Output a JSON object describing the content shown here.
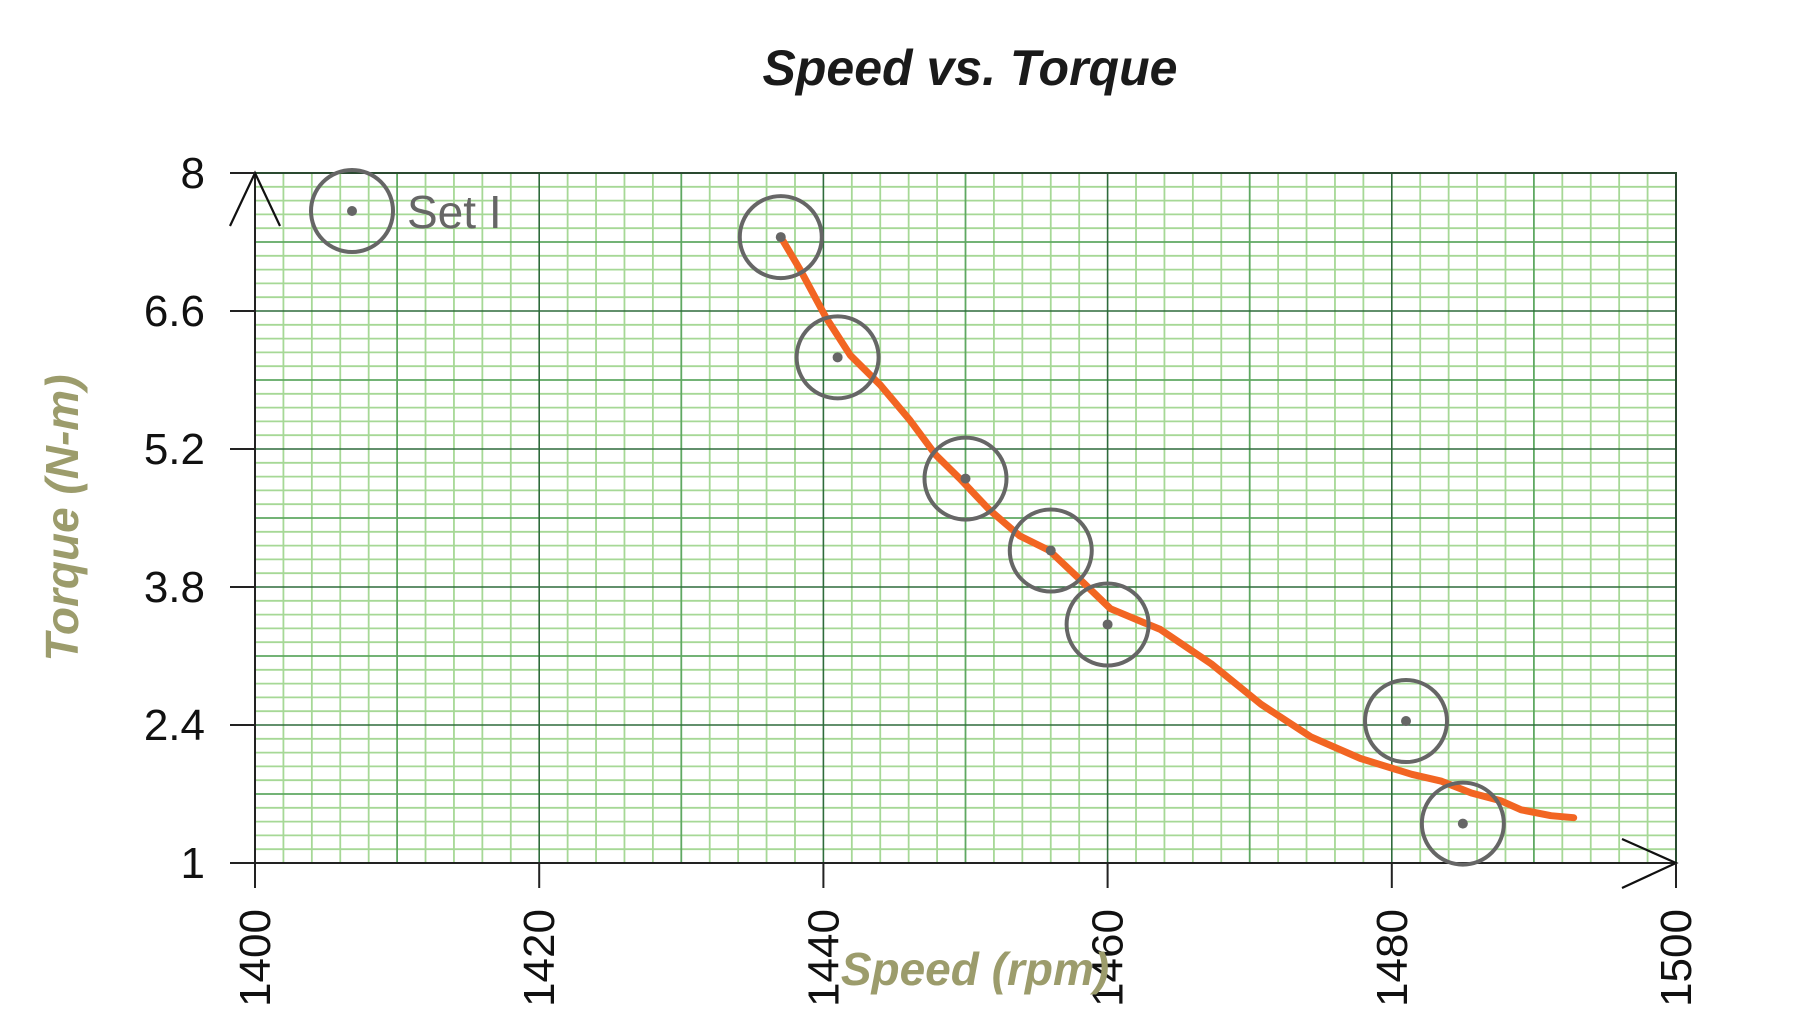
{
  "chart_data": {
    "type": "scatter",
    "title": "Speed vs. Torque",
    "xlabel": "Speed (rpm)",
    "ylabel": "Torque (N-m)",
    "xlim": [
      1400,
      1500
    ],
    "ylim": [
      1,
      8
    ],
    "x_ticks": [
      1400,
      1420,
      1440,
      1460,
      1480,
      1500
    ],
    "y_ticks": [
      1,
      2.4,
      3.8,
      5.2,
      6.6,
      8
    ],
    "x_tick_labels": [
      "1400",
      "1420",
      "1440",
      "1460",
      "1480",
      "1500"
    ],
    "y_tick_labels": [
      "1",
      "2.4",
      "3.8",
      "5.2",
      "6.6",
      "8"
    ],
    "grid": true,
    "grid_style": "graph-paper",
    "legend_position": "upper-left",
    "series": [
      {
        "name": "Set I",
        "marker": "circle-with-dot",
        "x": [
          1437,
          1441,
          1450,
          1456,
          1460,
          1481,
          1485
        ],
        "y": [
          7.35,
          6.13,
          4.9,
          4.17,
          3.42,
          2.44,
          1.4
        ]
      }
    ],
    "trend_curve": {
      "description": "hand-drawn freehand trend line",
      "points": [
        [
          1437,
          7.35
        ],
        [
          1438.4,
          7.01
        ],
        [
          1440.2,
          6.53
        ],
        [
          1441.9,
          6.15
        ],
        [
          1444.0,
          5.85
        ],
        [
          1446.1,
          5.49
        ],
        [
          1447.9,
          5.14
        ],
        [
          1449.6,
          4.9
        ],
        [
          1451.7,
          4.58
        ],
        [
          1453.8,
          4.32
        ],
        [
          1455.9,
          4.17
        ],
        [
          1458.1,
          3.87
        ],
        [
          1460.2,
          3.58
        ],
        [
          1463.7,
          3.37
        ],
        [
          1467.3,
          3.02
        ],
        [
          1470.8,
          2.61
        ],
        [
          1474.3,
          2.28
        ],
        [
          1477.8,
          2.06
        ],
        [
          1481.4,
          1.9
        ],
        [
          1483.5,
          1.83
        ],
        [
          1485.6,
          1.71
        ],
        [
          1487.7,
          1.63
        ],
        [
          1489.1,
          1.54
        ],
        [
          1491.2,
          1.48
        ],
        [
          1492.8,
          1.46
        ]
      ],
      "color": "#f26522"
    }
  },
  "colors": {
    "grid_minor": "#a6d896",
    "grid_medium": "#5fa862",
    "grid_major": "#2f6b3c",
    "marker": "#666666",
    "curve": "#f26522",
    "axis_label": "#9c9c6c"
  }
}
